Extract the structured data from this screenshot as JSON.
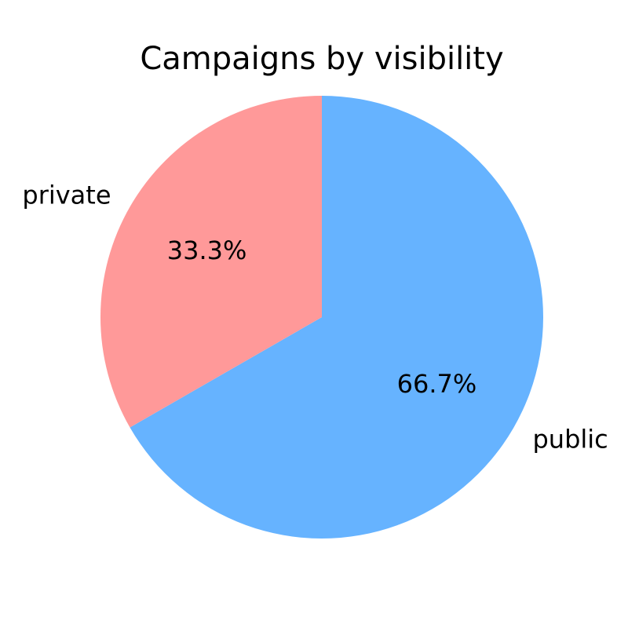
{
  "chart_data": {
    "type": "pie",
    "title": "Campaigns by visibility",
    "slices": [
      {
        "label": "public",
        "value": 66.7,
        "pct_label": "66.7%",
        "color": "#66b3ff"
      },
      {
        "label": "private",
        "value": 33.3,
        "pct_label": "33.3%",
        "color": "#ff9999"
      }
    ],
    "start_angle_deg": 90,
    "direction": "clockwise"
  }
}
